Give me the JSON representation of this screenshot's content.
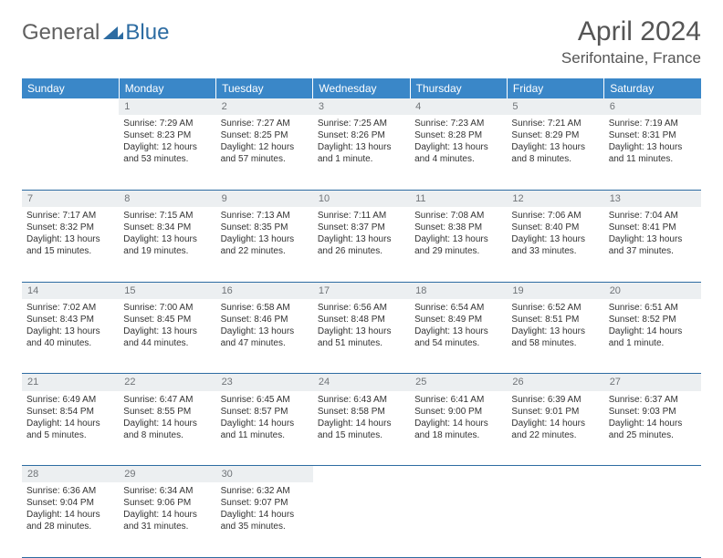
{
  "logo": {
    "general": "General",
    "blue": "Blue"
  },
  "title": "April 2024",
  "location": "Serifontaine, France",
  "colors": {
    "header_bg": "#3a87c8",
    "header_text": "#ffffff",
    "daynum_bg": "#eceff1",
    "daynum_text": "#707478",
    "cell_border": "#2d6ca2",
    "body_text": "#333333",
    "logo_gray": "#606060",
    "logo_blue": "#2d6ca2"
  },
  "weekdays": [
    "Sunday",
    "Monday",
    "Tuesday",
    "Wednesday",
    "Thursday",
    "Friday",
    "Saturday"
  ],
  "weeks": [
    {
      "nums": [
        "",
        "1",
        "2",
        "3",
        "4",
        "5",
        "6"
      ],
      "cells": [
        null,
        {
          "sunrise": "7:29 AM",
          "sunset": "8:23 PM",
          "daylight": "12 hours and 53 minutes."
        },
        {
          "sunrise": "7:27 AM",
          "sunset": "8:25 PM",
          "daylight": "12 hours and 57 minutes."
        },
        {
          "sunrise": "7:25 AM",
          "sunset": "8:26 PM",
          "daylight": "13 hours and 1 minute."
        },
        {
          "sunrise": "7:23 AM",
          "sunset": "8:28 PM",
          "daylight": "13 hours and 4 minutes."
        },
        {
          "sunrise": "7:21 AM",
          "sunset": "8:29 PM",
          "daylight": "13 hours and 8 minutes."
        },
        {
          "sunrise": "7:19 AM",
          "sunset": "8:31 PM",
          "daylight": "13 hours and 11 minutes."
        }
      ]
    },
    {
      "nums": [
        "7",
        "8",
        "9",
        "10",
        "11",
        "12",
        "13"
      ],
      "cells": [
        {
          "sunrise": "7:17 AM",
          "sunset": "8:32 PM",
          "daylight": "13 hours and 15 minutes."
        },
        {
          "sunrise": "7:15 AM",
          "sunset": "8:34 PM",
          "daylight": "13 hours and 19 minutes."
        },
        {
          "sunrise": "7:13 AM",
          "sunset": "8:35 PM",
          "daylight": "13 hours and 22 minutes."
        },
        {
          "sunrise": "7:11 AM",
          "sunset": "8:37 PM",
          "daylight": "13 hours and 26 minutes."
        },
        {
          "sunrise": "7:08 AM",
          "sunset": "8:38 PM",
          "daylight": "13 hours and 29 minutes."
        },
        {
          "sunrise": "7:06 AM",
          "sunset": "8:40 PM",
          "daylight": "13 hours and 33 minutes."
        },
        {
          "sunrise": "7:04 AM",
          "sunset": "8:41 PM",
          "daylight": "13 hours and 37 minutes."
        }
      ]
    },
    {
      "nums": [
        "14",
        "15",
        "16",
        "17",
        "18",
        "19",
        "20"
      ],
      "cells": [
        {
          "sunrise": "7:02 AM",
          "sunset": "8:43 PM",
          "daylight": "13 hours and 40 minutes."
        },
        {
          "sunrise": "7:00 AM",
          "sunset": "8:45 PM",
          "daylight": "13 hours and 44 minutes."
        },
        {
          "sunrise": "6:58 AM",
          "sunset": "8:46 PM",
          "daylight": "13 hours and 47 minutes."
        },
        {
          "sunrise": "6:56 AM",
          "sunset": "8:48 PM",
          "daylight": "13 hours and 51 minutes."
        },
        {
          "sunrise": "6:54 AM",
          "sunset": "8:49 PM",
          "daylight": "13 hours and 54 minutes."
        },
        {
          "sunrise": "6:52 AM",
          "sunset": "8:51 PM",
          "daylight": "13 hours and 58 minutes."
        },
        {
          "sunrise": "6:51 AM",
          "sunset": "8:52 PM",
          "daylight": "14 hours and 1 minute."
        }
      ]
    },
    {
      "nums": [
        "21",
        "22",
        "23",
        "24",
        "25",
        "26",
        "27"
      ],
      "cells": [
        {
          "sunrise": "6:49 AM",
          "sunset": "8:54 PM",
          "daylight": "14 hours and 5 minutes."
        },
        {
          "sunrise": "6:47 AM",
          "sunset": "8:55 PM",
          "daylight": "14 hours and 8 minutes."
        },
        {
          "sunrise": "6:45 AM",
          "sunset": "8:57 PM",
          "daylight": "14 hours and 11 minutes."
        },
        {
          "sunrise": "6:43 AM",
          "sunset": "8:58 PM",
          "daylight": "14 hours and 15 minutes."
        },
        {
          "sunrise": "6:41 AM",
          "sunset": "9:00 PM",
          "daylight": "14 hours and 18 minutes."
        },
        {
          "sunrise": "6:39 AM",
          "sunset": "9:01 PM",
          "daylight": "14 hours and 22 minutes."
        },
        {
          "sunrise": "6:37 AM",
          "sunset": "9:03 PM",
          "daylight": "14 hours and 25 minutes."
        }
      ]
    },
    {
      "nums": [
        "28",
        "29",
        "30",
        "",
        "",
        "",
        ""
      ],
      "cells": [
        {
          "sunrise": "6:36 AM",
          "sunset": "9:04 PM",
          "daylight": "14 hours and 28 minutes."
        },
        {
          "sunrise": "6:34 AM",
          "sunset": "9:06 PM",
          "daylight": "14 hours and 31 minutes."
        },
        {
          "sunrise": "6:32 AM",
          "sunset": "9:07 PM",
          "daylight": "14 hours and 35 minutes."
        },
        null,
        null,
        null,
        null
      ]
    }
  ],
  "labels": {
    "sunrise": "Sunrise: ",
    "sunset": "Sunset: ",
    "daylight": "Daylight: "
  }
}
